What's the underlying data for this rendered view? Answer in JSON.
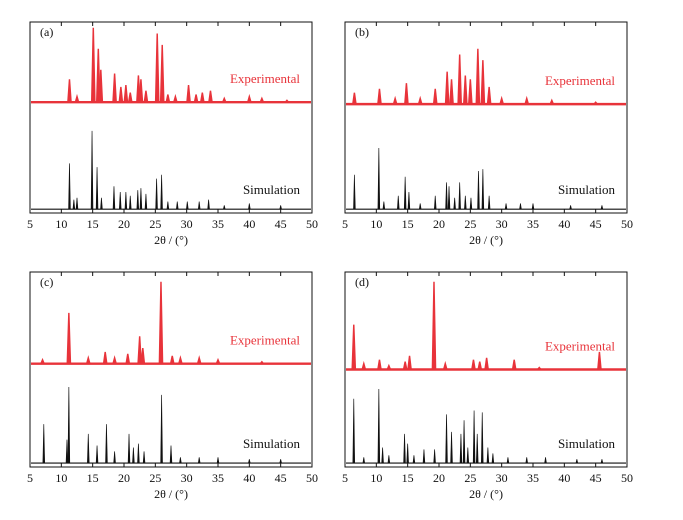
{
  "chart_data": [
    {
      "type": "line",
      "panel": "(a)",
      "x_label": "2θ / (°)",
      "xlim": [
        5,
        50
      ],
      "xticks": [
        5,
        10,
        15,
        20,
        25,
        30,
        35,
        40,
        45,
        50
      ],
      "ylim": [
        0,
        100
      ],
      "series": [
        {
          "name": "Experimental",
          "color": "#e8333a",
          "baseline": 58,
          "x": [
            11.3,
            12.5,
            15.1,
            15.9,
            16.3,
            18.5,
            19.5,
            20.3,
            21,
            22.3,
            22.7,
            23.5,
            25.3,
            26.1,
            27,
            28.2,
            30.3,
            31.5,
            32.5,
            33.8,
            36,
            40,
            42,
            46
          ],
          "values": [
            70,
            61,
            97,
            86,
            75,
            73,
            66,
            67,
            63,
            72,
            70,
            64,
            94,
            88,
            62,
            61,
            67,
            62,
            63,
            64,
            60,
            61,
            60,
            59
          ]
        },
        {
          "name": "Simulation",
          "color": "#111111",
          "baseline": 2,
          "x": [
            11.3,
            12,
            12.5,
            14.9,
            15.7,
            16.4,
            18.4,
            19.4,
            20.3,
            21,
            22.2,
            22.7,
            23.5,
            25.2,
            26,
            27,
            28.5,
            30.1,
            32,
            33.5,
            36,
            40,
            45
          ],
          "values": [
            26,
            7,
            8,
            43,
            24,
            8,
            14,
            11,
            11,
            9,
            12,
            13,
            10,
            18,
            20,
            6,
            6,
            6,
            6,
            7,
            4,
            5,
            4
          ]
        }
      ]
    },
    {
      "type": "line",
      "panel": "(b)",
      "x_label": "2θ / (°)",
      "xlim": [
        5,
        50
      ],
      "xticks": [
        5,
        10,
        15,
        20,
        25,
        30,
        35,
        40,
        45,
        50
      ],
      "ylim": [
        0,
        100
      ],
      "series": [
        {
          "name": "Experimental",
          "color": "#e8333a",
          "baseline": 57,
          "x": [
            6.5,
            10.5,
            13,
            14.8,
            17,
            19.4,
            21.3,
            22,
            23.3,
            24.2,
            25,
            26.2,
            27,
            28,
            30,
            34,
            38,
            45
          ],
          "values": [
            63,
            65,
            60,
            68,
            60,
            65,
            74,
            70,
            83,
            72,
            70,
            86,
            80,
            66,
            60,
            60,
            59,
            58
          ]
        },
        {
          "name": "Simulation",
          "color": "#111111",
          "baseline": 2,
          "x": [
            6.5,
            10.4,
            11.2,
            13.5,
            14.6,
            15.2,
            17,
            19.4,
            21.2,
            21.6,
            22.5,
            23.3,
            24.2,
            25.1,
            26.3,
            27,
            28,
            30.7,
            33,
            35,
            41,
            46
          ],
          "values": [
            20,
            34,
            6,
            9,
            19,
            11,
            5,
            9,
            16,
            14,
            8,
            16,
            9,
            8,
            22,
            23,
            9,
            5,
            5,
            5,
            4,
            4
          ]
        }
      ]
    },
    {
      "type": "line",
      "panel": "(c)",
      "x_label": "2θ / (°)",
      "xlim": [
        5,
        50
      ],
      "xticks": [
        5,
        10,
        15,
        20,
        25,
        30,
        35,
        40,
        45,
        50
      ],
      "ylim": [
        0,
        100
      ],
      "series": [
        {
          "name": "Experimental",
          "color": "#e8333a",
          "baseline": 53,
          "x": [
            7,
            11.2,
            14.3,
            17,
            18.5,
            20.6,
            22.5,
            23,
            25.9,
            27.7,
            29,
            32,
            35,
            42
          ],
          "values": [
            55,
            79,
            56,
            59,
            56,
            58,
            67,
            61,
            95,
            57,
            56,
            56,
            55,
            54
          ]
        },
        {
          "name": "Simulation",
          "color": "#111111",
          "baseline": 2,
          "x": [
            7.2,
            10.9,
            11.2,
            14.3,
            15.7,
            17.2,
            18.5,
            20.8,
            21.5,
            22.3,
            23.2,
            26,
            27.5,
            29,
            32,
            35,
            40,
            45
          ],
          "values": [
            22,
            14,
            41,
            17,
            11,
            22,
            8,
            17,
            10,
            12,
            8,
            37,
            11,
            5,
            5,
            5,
            4,
            4
          ]
        }
      ]
    },
    {
      "type": "line",
      "panel": "(d)",
      "x_label": "2θ / (°)",
      "xlim": [
        5,
        50
      ],
      "xticks": [
        5,
        10,
        15,
        20,
        25,
        30,
        35,
        40,
        45,
        50
      ],
      "ylim": [
        0,
        100
      ],
      "series": [
        {
          "name": "Experimental",
          "color": "#e8333a",
          "baseline": 50,
          "x": [
            6.4,
            8,
            10.5,
            12,
            14.6,
            15.3,
            19.2,
            21,
            25.5,
            26.5,
            27.6,
            32,
            36,
            45.6
          ],
          "values": [
            73,
            53,
            55,
            52,
            54,
            57,
            95,
            53,
            55,
            54,
            56,
            55,
            51,
            59
          ]
        },
        {
          "name": "Simulation",
          "color": "#111111",
          "baseline": 2,
          "x": [
            6.4,
            8,
            10.4,
            11,
            12,
            14.5,
            15,
            16,
            17.6,
            19.3,
            21.2,
            22,
            23.5,
            24,
            24.6,
            25.6,
            26.1,
            26.9,
            27.8,
            28.6,
            31,
            34,
            37,
            42,
            46
          ],
          "values": [
            35,
            5,
            40,
            10,
            6,
            17,
            12,
            6,
            9,
            9,
            27,
            18,
            17,
            24,
            10,
            29,
            17,
            28,
            10,
            7,
            5,
            5,
            5,
            4,
            4
          ]
        }
      ]
    }
  ]
}
